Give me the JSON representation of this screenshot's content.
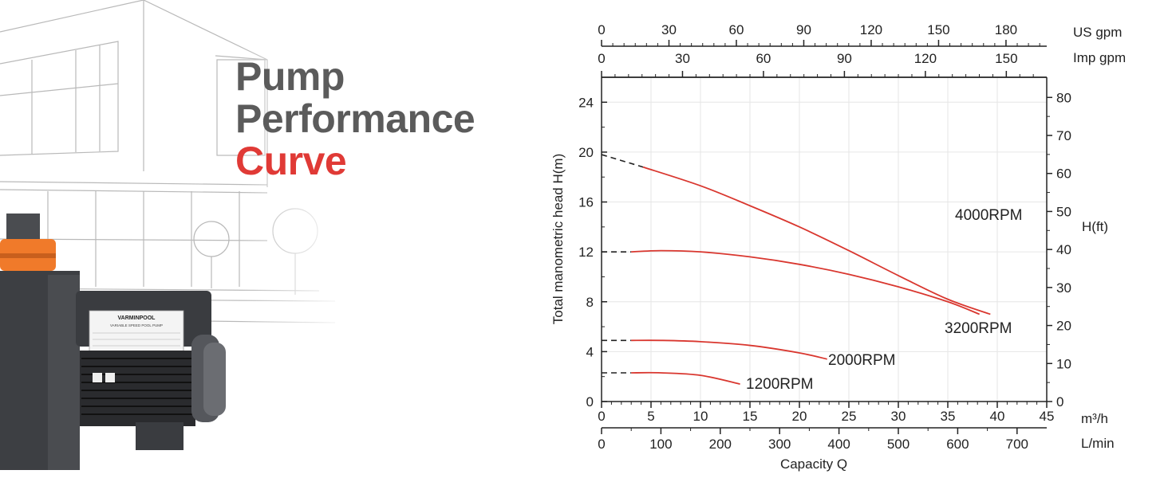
{
  "headline": {
    "line1": "Pump",
    "line2": "Performance",
    "line3": "Curve"
  },
  "product": {
    "brand": "VARMINPOOL",
    "subtitle": "VARIABLE SPEED POOL PUMP"
  },
  "colors": {
    "accent_red": "#e03a36",
    "heading_gray": "#5b5b5b",
    "curve_red": "#d9372f",
    "pump_orange": "#f07a2a",
    "pump_body": "#3d3f43"
  },
  "chart_data": {
    "type": "line",
    "x_axis": {
      "label": "",
      "unit": "m³/h",
      "range": [
        0,
        45
      ],
      "ticks": [
        "0",
        "5",
        "10",
        "15",
        "20",
        "25",
        "30",
        "35",
        "40",
        "45"
      ]
    },
    "x_axis_secondary": {
      "label": "Capacity Q",
      "unit": "L/min",
      "ticks": [
        "0",
        "100",
        "200",
        "300",
        "400",
        "500",
        "600",
        "700"
      ]
    },
    "x_axis_top_1": {
      "unit": "US gpm",
      "ticks": [
        "0",
        "30",
        "60",
        "90",
        "120",
        "150",
        "180"
      ]
    },
    "x_axis_top_2": {
      "unit": "Imp gpm",
      "ticks": [
        "0",
        "30",
        "60",
        "90",
        "120",
        "150"
      ]
    },
    "y_axis": {
      "label": "Total manometric head H(m)",
      "range": [
        0,
        26
      ],
      "ticks": [
        "0",
        "4",
        "8",
        "12",
        "16",
        "20",
        "24"
      ]
    },
    "y_axis_secondary": {
      "label": "H(ft)",
      "ticks": [
        "0",
        "10",
        "20",
        "30",
        "40",
        "50",
        "60",
        "70",
        "80"
      ]
    },
    "grid": true,
    "series": [
      {
        "name": "4000RPM",
        "x": [
          4.2,
          10,
          15,
          20,
          25,
          30,
          35,
          39.3
        ],
        "y": [
          18.8,
          17.3,
          15.7,
          14.0,
          12.1,
          10.1,
          8.2,
          7.0
        ],
        "dashed_extension": {
          "x": [
            0,
            4.2
          ],
          "y": [
            19.8,
            18.8
          ]
        }
      },
      {
        "name": "3200RPM",
        "x": [
          3,
          6,
          10,
          15,
          20,
          25,
          30,
          35,
          38.2
        ],
        "y": [
          12.0,
          12.1,
          12.0,
          11.6,
          11.0,
          10.2,
          9.2,
          8.0,
          7.0
        ],
        "dashed_extension": {
          "x": [
            0,
            3
          ],
          "y": [
            12.0,
            12.0
          ]
        }
      },
      {
        "name": "2000RPM",
        "x": [
          3,
          6,
          10,
          15,
          20,
          22.8
        ],
        "y": [
          4.9,
          4.9,
          4.8,
          4.5,
          3.9,
          3.4
        ],
        "dashed_extension": {
          "x": [
            0,
            3
          ],
          "y": [
            4.9,
            4.9
          ]
        }
      },
      {
        "name": "1200RPM",
        "x": [
          3,
          6,
          10,
          14
        ],
        "y": [
          2.3,
          2.3,
          2.1,
          1.4
        ],
        "dashed_extension": {
          "x": [
            0,
            3
          ],
          "y": [
            2.3,
            2.3
          ]
        }
      }
    ]
  }
}
